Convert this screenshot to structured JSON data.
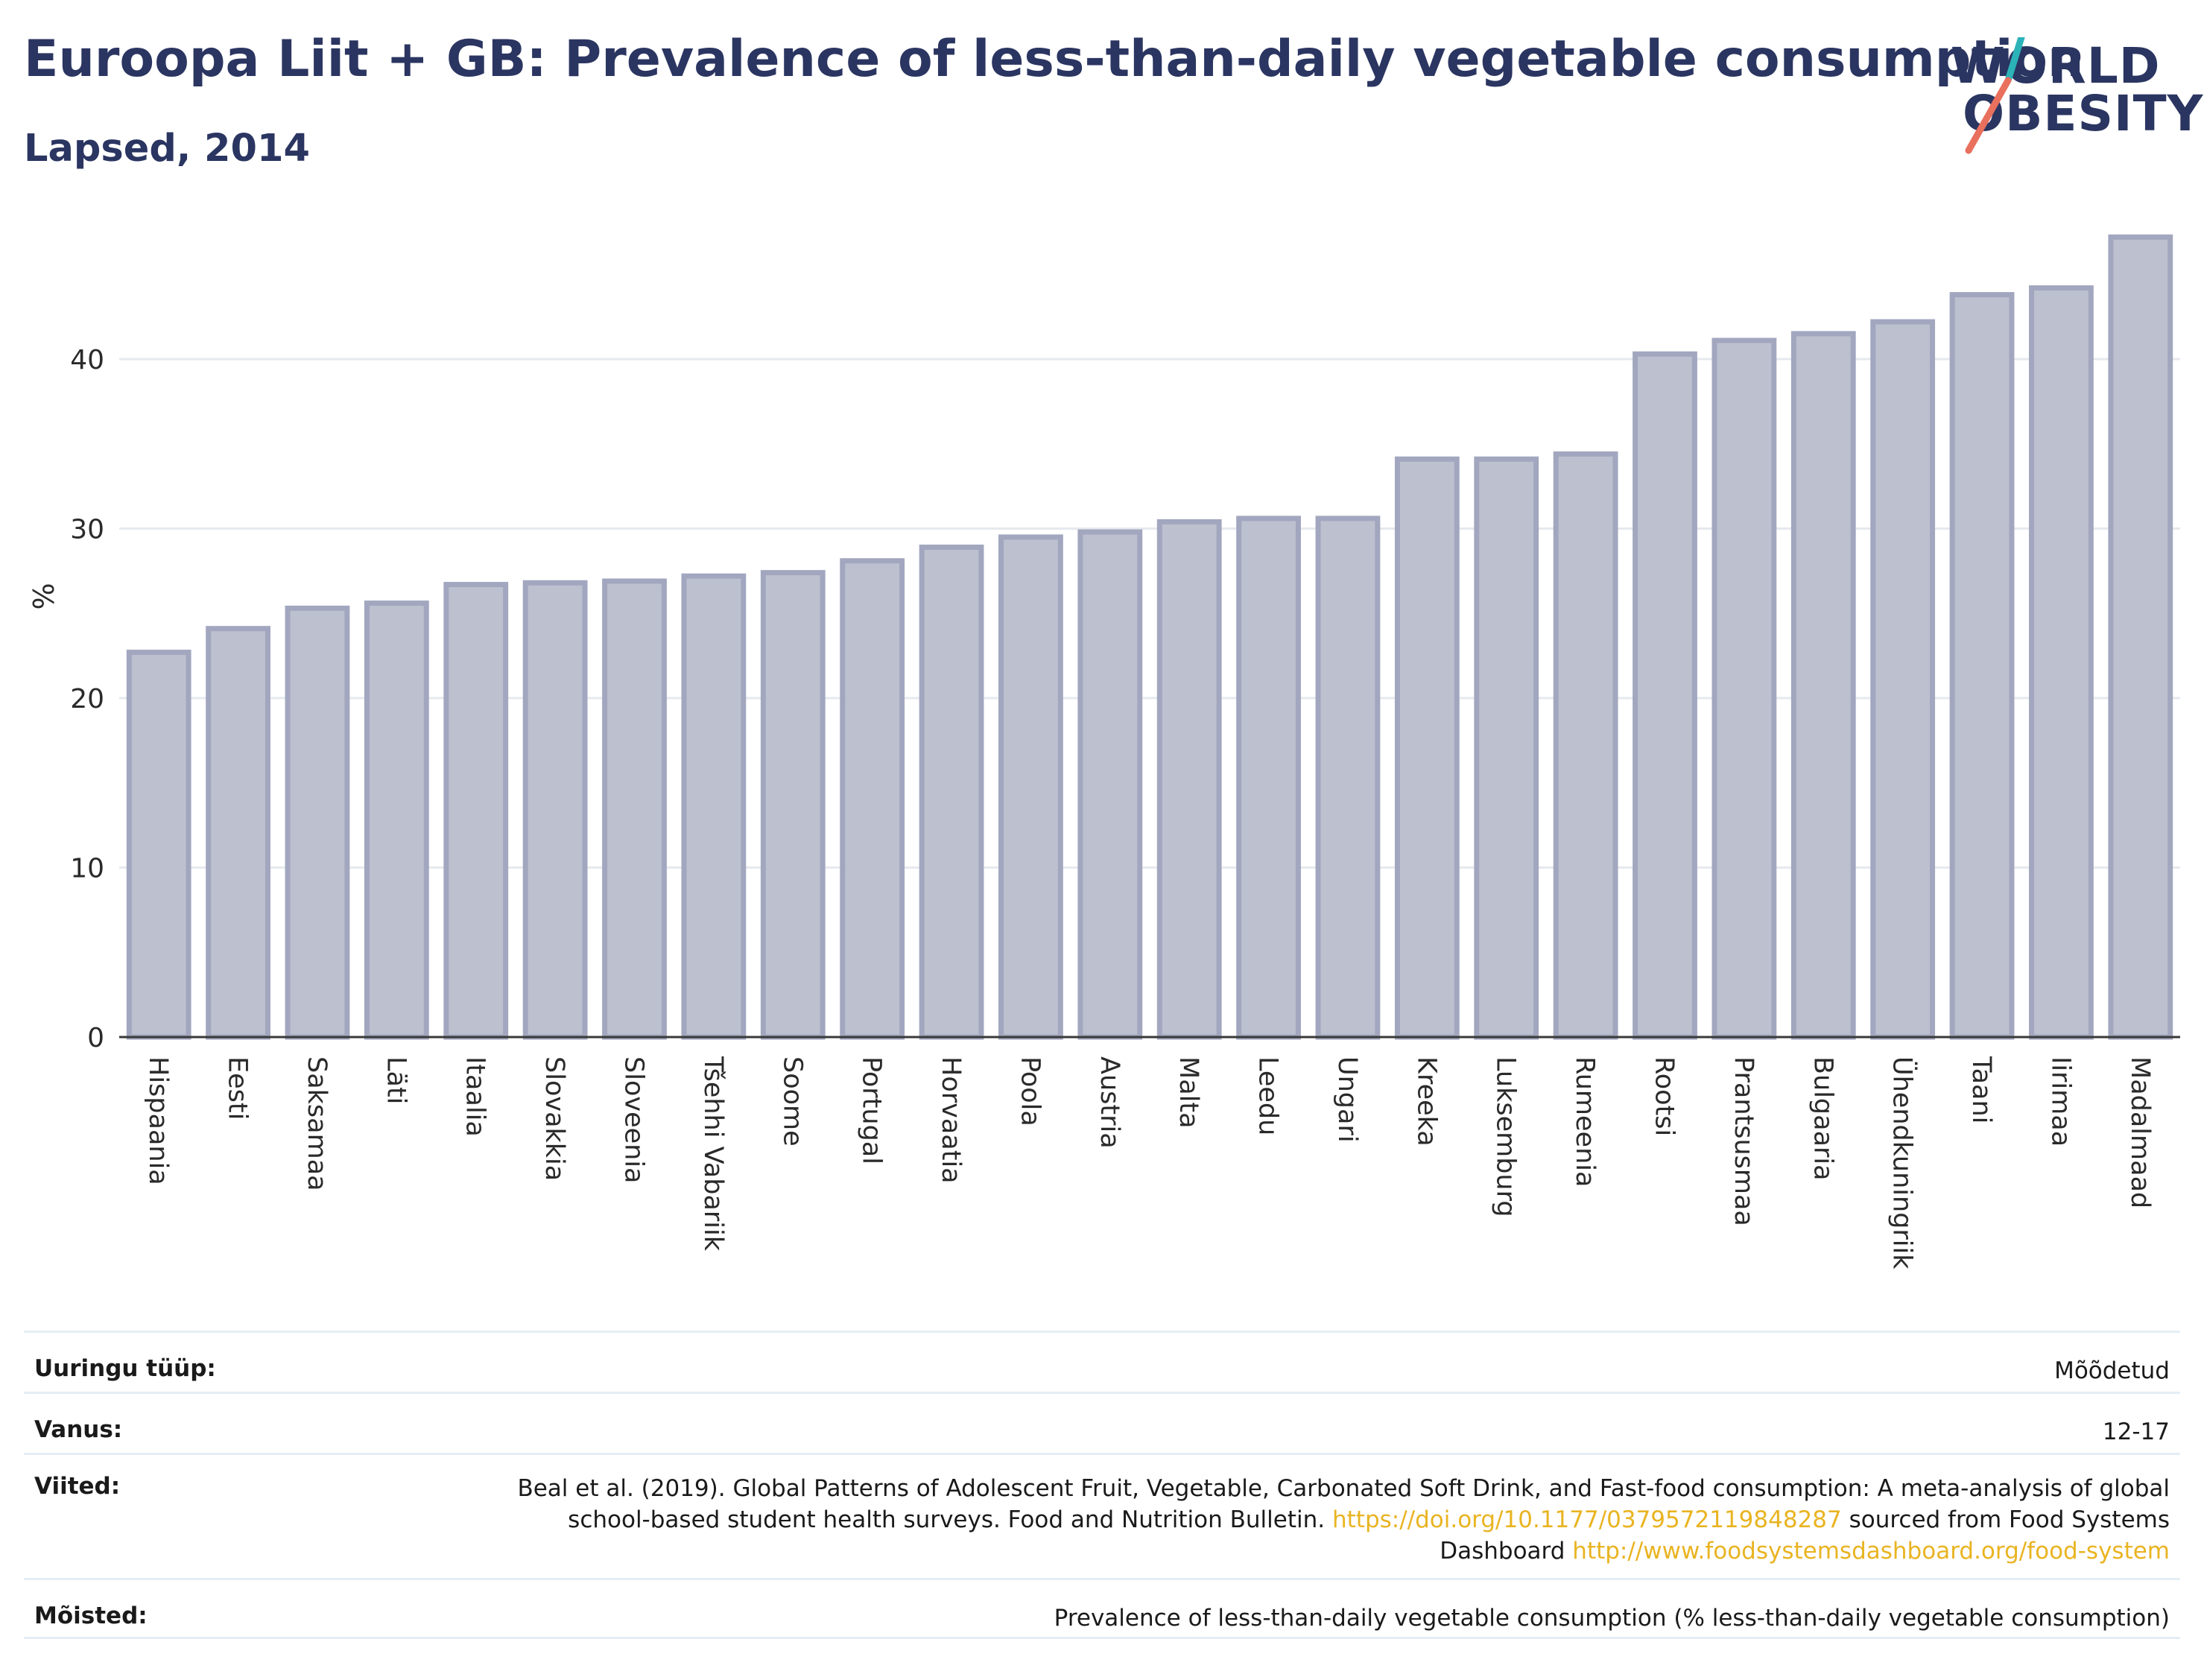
{
  "header": {
    "title": "Euroopa Liit + GB: Prevalence of less-than-daily vegetable consumption",
    "subtitle": "Lapsed, 2014",
    "logo_line1": "WORLD",
    "logo_line2": "OBESITY"
  },
  "chart_data": {
    "type": "bar",
    "title": "Euroopa Liit + GB: Prevalence of less-than-daily vegetable consumption",
    "subtitle": "Lapsed, 2014",
    "ylabel": "%",
    "xlabel": "",
    "ylim": [
      0,
      48
    ],
    "yticks": [
      0,
      10,
      20,
      30,
      40
    ],
    "grid": true,
    "bar_color": "#bcc0cf",
    "bar_border": "#a2a7bf",
    "categories": [
      "Hispaania",
      "Eesti",
      "Saksamaa",
      "Läti",
      "Itaalia",
      "Slovakkia",
      "Sloveenia",
      "Tšehhi Vabariik",
      "Soome",
      "Portugal",
      "Horvaatia",
      "Poola",
      "Austria",
      "Malta",
      "Leedu",
      "Ungari",
      "Kreeka",
      "Luksemburg",
      "Rumeenia",
      "Rootsi",
      "Prantsusmaa",
      "Bulgaaria",
      "Ühendkuningriik",
      "Taani",
      "Iirimaa",
      "Madalmaad"
    ],
    "values": [
      22.7,
      24.1,
      25.3,
      25.6,
      26.7,
      26.8,
      26.9,
      27.2,
      27.4,
      28.1,
      28.9,
      29.5,
      29.8,
      30.4,
      30.6,
      30.6,
      34.1,
      34.1,
      34.4,
      40.3,
      41.1,
      41.5,
      42.2,
      43.8,
      44.2,
      47.2
    ]
  },
  "info": {
    "survey_label": "Uuringu tüüp:",
    "survey_value": "Mõõdetud",
    "age_label": "Vanus:",
    "age_value": "12-17",
    "refs_label": "Viited:",
    "refs_text1": "Beal et al. (2019). Global Patterns of Adolescent Fruit, Vegetable, Carbonated Soft Drink, and Fast-food consumption: A meta-analysis of global school-based student health surveys. Food and Nutrition Bulletin. ",
    "refs_link1": "https://doi.org/10.1177/0379572119848287",
    "refs_text2": " sourced from Food Systems Dashboard ",
    "refs_link2": "http://www.foodsystemsdashboard.org/food-system",
    "defs_label": "Mõisted:",
    "defs_value": "Prevalence of less-than-daily vegetable consumption (% less-than-daily vegetable consumption)"
  }
}
